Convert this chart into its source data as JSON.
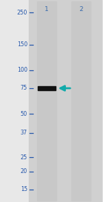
{
  "fig_width": 1.5,
  "fig_height": 2.93,
  "dpi": 100,
  "outer_bg_color": "#e8e8e8",
  "gel_bg_color": "#d0d0d0",
  "lane_bg_color": "#c8c8c8",
  "lane_labels": [
    "1",
    "2"
  ],
  "lane_label_color": "#3366aa",
  "lane_label_fontsize": 6.5,
  "mw_markers": [
    250,
    150,
    100,
    75,
    50,
    37,
    25,
    20,
    15
  ],
  "mw_marker_color": "#2255aa",
  "mw_marker_fontsize": 5.8,
  "tick_color": "#2255aa",
  "band_lane_idx": 0,
  "band_mw": 75,
  "band_color": "#111111",
  "arrow_color": "#11aaaa",
  "mw_log_min": 1.176,
  "mw_log_max": 2.398
}
